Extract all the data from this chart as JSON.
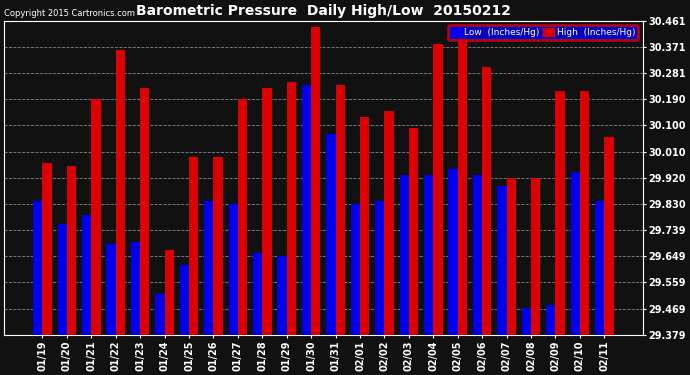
{
  "title": "Barometric Pressure  Daily High/Low  20150212",
  "copyright": "Copyright 2015 Cartronics.com",
  "dates": [
    "01/19",
    "01/20",
    "01/21",
    "01/22",
    "01/23",
    "01/24",
    "01/25",
    "01/26",
    "01/27",
    "01/28",
    "01/29",
    "01/30",
    "01/31",
    "02/01",
    "02/02",
    "02/03",
    "02/04",
    "02/05",
    "02/06",
    "02/07",
    "02/08",
    "02/09",
    "02/10",
    "02/11"
  ],
  "low_values": [
    29.84,
    29.76,
    29.79,
    29.69,
    29.7,
    29.52,
    29.62,
    29.84,
    29.83,
    29.66,
    29.65,
    30.24,
    30.07,
    29.83,
    29.84,
    29.93,
    29.93,
    29.95,
    29.93,
    29.89,
    29.47,
    29.48,
    29.94,
    29.84
  ],
  "high_values": [
    29.97,
    29.96,
    30.19,
    30.36,
    30.23,
    29.67,
    29.99,
    29.99,
    30.19,
    30.23,
    30.25,
    30.44,
    30.24,
    30.13,
    30.15,
    30.09,
    30.38,
    30.42,
    30.3,
    29.92,
    29.92,
    30.22,
    30.22,
    30.06
  ],
  "low_color": "#0000ee",
  "high_color": "#dd0000",
  "bg_color": "#111111",
  "plot_bg_color": "#111111",
  "text_color": "#ffffff",
  "grid_color": "#888888",
  "yticks": [
    29.379,
    29.469,
    29.559,
    29.649,
    29.739,
    29.83,
    29.92,
    30.01,
    30.1,
    30.19,
    30.281,
    30.371,
    30.461
  ],
  "ymin": 29.379,
  "ymax": 30.461,
  "legend_low_label": "Low  (Inches/Hg)",
  "legend_high_label": "High  (Inches/Hg)"
}
